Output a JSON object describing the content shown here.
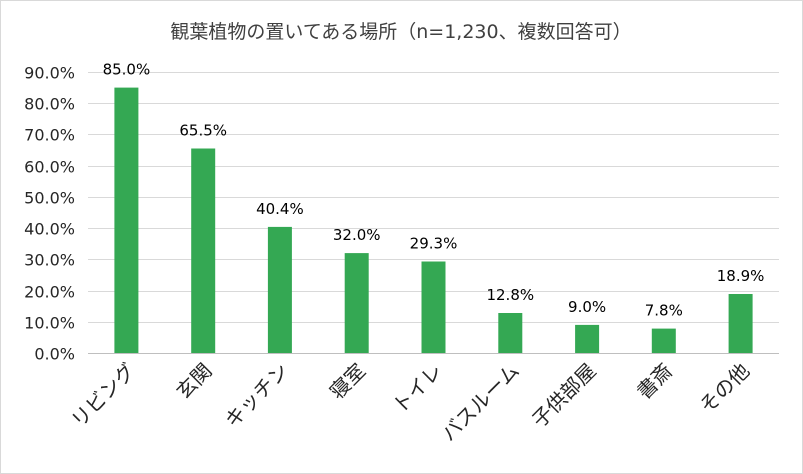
{
  "chart_data": {
    "type": "bar",
    "title": "観葉植物の置いてある場所（n=1,230、複数回答可）",
    "xlabel": "",
    "ylabel": "",
    "categories": [
      "リビング",
      "玄関",
      "キッチン",
      "寝室",
      "トイレ",
      "バスルーム",
      "子供部屋",
      "書斎",
      "その他"
    ],
    "values": [
      85.0,
      65.5,
      40.4,
      32.0,
      29.3,
      12.8,
      9.0,
      7.8,
      18.9
    ],
    "data_labels": [
      "85.0%",
      "65.5%",
      "40.4%",
      "32.0%",
      "29.3%",
      "12.8%",
      "9.0%",
      "7.8%",
      "18.9%"
    ],
    "ylim": [
      0,
      90
    ],
    "yticks": [
      0,
      10,
      20,
      30,
      40,
      50,
      60,
      70,
      80,
      90
    ],
    "ytick_labels": [
      "0.0%",
      "10.0%",
      "20.0%",
      "30.0%",
      "40.0%",
      "50.0%",
      "60.0%",
      "70.0%",
      "80.0%",
      "90.0%"
    ],
    "grid": true,
    "legend": "none"
  },
  "colors": {
    "bar": "#34a853",
    "grid": "#d9d9d9",
    "axis": "#bfbfbf",
    "border": "#d9d9d9"
  }
}
